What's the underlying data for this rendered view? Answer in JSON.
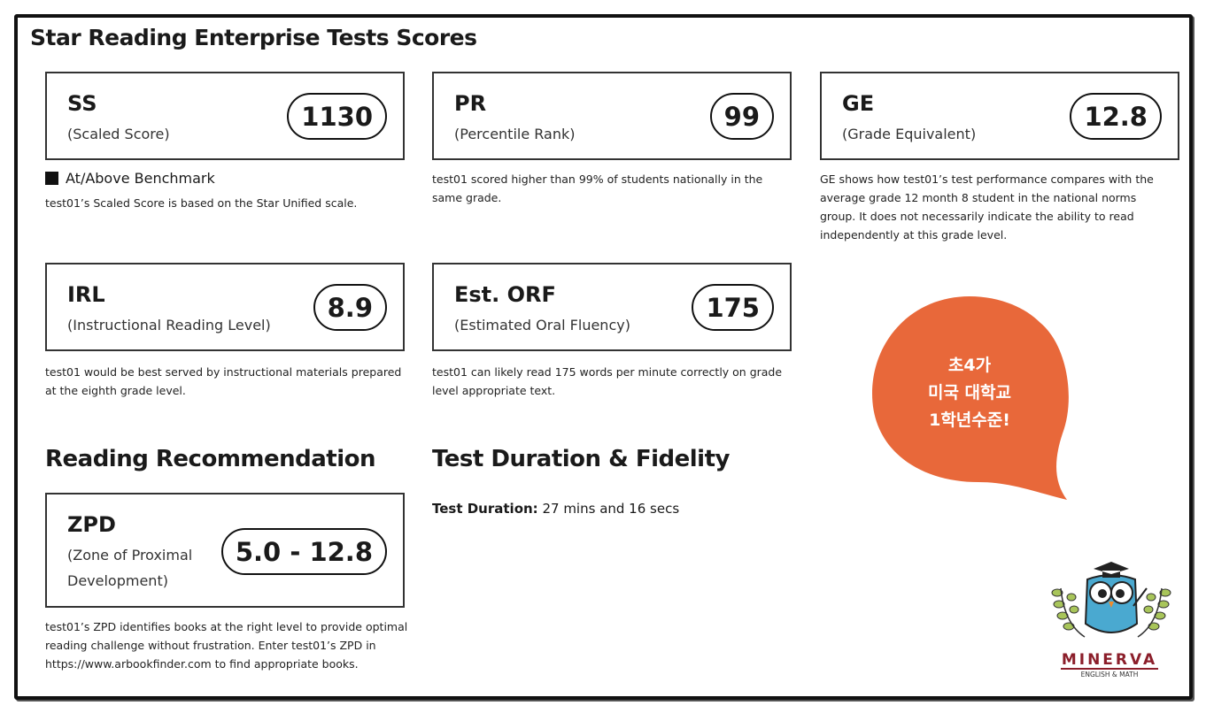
{
  "title": "Star Reading Enterprise Tests Scores",
  "scores": {
    "ss": {
      "abbr": "SS",
      "full": "(Scaled Score)",
      "value": "1130",
      "benchmark": "At/Above Benchmark",
      "desc": "test01’s Scaled Score is based on the Star Unified scale."
    },
    "pr": {
      "abbr": "PR",
      "full": "(Percentile Rank)",
      "value": "99",
      "desc": "test01 scored higher than 99% of students nationally in the same grade."
    },
    "ge": {
      "abbr": "GE",
      "full": "(Grade Equivalent)",
      "value": "12.8",
      "desc": "GE shows how test01’s test performance compares with the average grade 12 month 8 student in the national norms group. It does not necessarily indicate the ability to read independently at this grade level."
    },
    "irl": {
      "abbr": "IRL",
      "full": "(Instructional Reading Level)",
      "value": "8.9",
      "desc": "test01 would be best served by instructional materials prepared at the eighth grade level."
    },
    "orf": {
      "abbr": "Est. ORF",
      "full": "(Estimated Oral Fluency)",
      "value": "175",
      "desc": "test01 can likely read 175 words per minute correctly on grade level appropriate text."
    }
  },
  "recommendation": {
    "heading": "Reading Recommendation",
    "abbr": "ZPD",
    "full": "(Zone of Proximal Development)",
    "value": "5.0 - 12.8",
    "desc": "test01’s ZPD identifies books at the right level to provide optimal reading challenge without frustration. Enter test01’s ZPD in https://www.arbookfinder.com to find appropriate books."
  },
  "duration": {
    "heading": "Test Duration & Fidelity",
    "label": "Test Duration:",
    "value": "27 mins and 16 secs"
  },
  "bubble": {
    "line1": "초4가",
    "line2": "미국 대학교",
    "line3": "1학년수준!",
    "color": "#E8683A"
  },
  "logo": {
    "name": "MINERVA",
    "sub": "ENGLISH & MATH"
  }
}
